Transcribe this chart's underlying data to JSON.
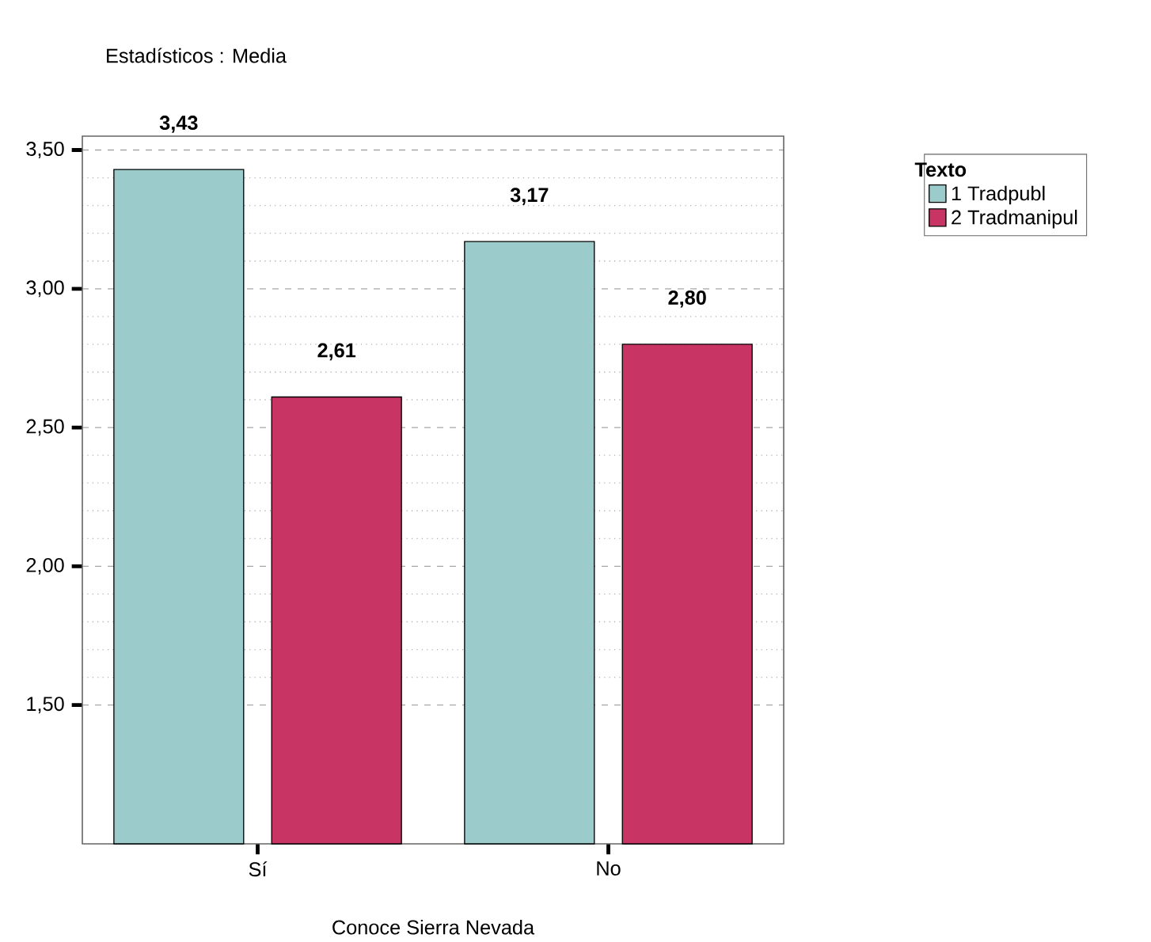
{
  "chart_data": {
    "type": "bar",
    "title": "Estadísticos : Media",
    "xlabel": "Conoce Sierra Nevada",
    "legend_title": "Texto",
    "categories": [
      "Sí",
      "No"
    ],
    "series": [
      {
        "name": "1 Tradpubl",
        "color": "#9ccbcb",
        "values": [
          3.43,
          3.17
        ],
        "value_labels": [
          "3,43",
          "3,17"
        ]
      },
      {
        "name": "2 Tradmanipul",
        "color": "#c83564",
        "values": [
          2.61,
          2.8
        ],
        "value_labels": [
          "2,61",
          "2,80"
        ]
      }
    ],
    "ylim": [
      1.0,
      3.55
    ],
    "yticks": [
      {
        "value": 1.5,
        "label": "1,50"
      },
      {
        "value": 2.0,
        "label": "2,00"
      },
      {
        "value": 2.5,
        "label": "2,50"
      },
      {
        "value": 3.0,
        "label": "3,00"
      },
      {
        "value": 3.5,
        "label": "3,50"
      }
    ],
    "grid": "y",
    "legend": "right"
  }
}
